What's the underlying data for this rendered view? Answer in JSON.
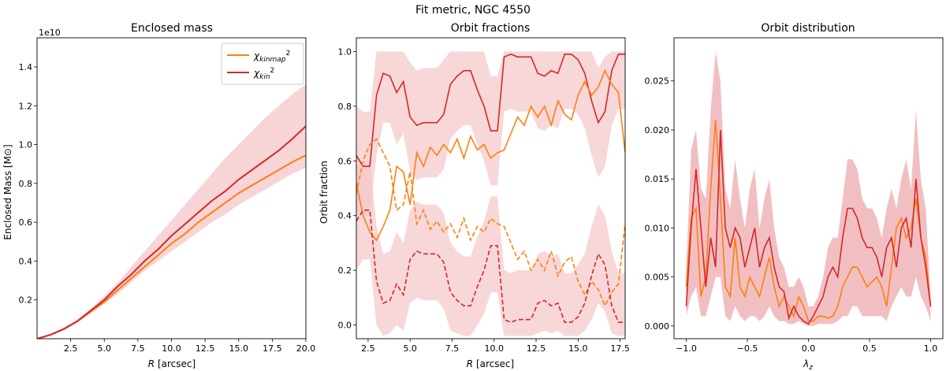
{
  "suptitle": "Fit metric, NGC 4550",
  "colors": {
    "orange": "#ff7f0e",
    "red": "#d62728",
    "band": "#f4c6c8",
    "band_dark": "#e68a8f"
  },
  "chart_data": [
    {
      "id": "mass",
      "type": "line",
      "title": "Enclosed mass",
      "xlabel": "R [arcsec]",
      "ylabel": "Enclosed Mass [M⊙]",
      "offset_label": "1e10",
      "xlim": [
        0,
        20
      ],
      "ylim": [
        0,
        1.55
      ],
      "xticks": [
        2.5,
        5.0,
        7.5,
        10.0,
        12.5,
        15.0,
        17.5,
        20.0
      ],
      "xtick_labels": [
        "2.5",
        "5.0",
        "7.5",
        "10.0",
        "12.5",
        "15.0",
        "17.5",
        "20.0"
      ],
      "yticks": [
        0.2,
        0.4,
        0.6,
        0.8,
        1.0,
        1.2,
        1.4
      ],
      "ytick_labels": [
        "0.2",
        "0.4",
        "0.6",
        "0.8",
        "1.0",
        "1.2",
        "1.4"
      ],
      "legend": [
        {
          "label": "χkinmap²"
        },
        {
          "label": "χkin²"
        }
      ],
      "x": [
        0,
        1,
        2,
        3,
        4,
        5,
        6,
        7,
        8,
        9,
        10,
        11,
        12,
        13,
        14,
        15,
        16,
        17,
        18,
        19,
        20
      ],
      "series": [
        {
          "name": "kinmap",
          "values": [
            0,
            0.02,
            0.05,
            0.09,
            0.14,
            0.19,
            0.25,
            0.31,
            0.37,
            0.43,
            0.49,
            0.54,
            0.6,
            0.65,
            0.7,
            0.75,
            0.79,
            0.83,
            0.87,
            0.91,
            0.945
          ]
        },
        {
          "name": "kin",
          "values": [
            0,
            0.02,
            0.05,
            0.09,
            0.145,
            0.2,
            0.27,
            0.33,
            0.4,
            0.46,
            0.53,
            0.59,
            0.65,
            0.71,
            0.76,
            0.82,
            0.87,
            0.92,
            0.97,
            1.03,
            1.095
          ]
        }
      ],
      "band": {
        "lower": [
          0,
          0.02,
          0.045,
          0.085,
          0.13,
          0.18,
          0.23,
          0.29,
          0.35,
          0.4,
          0.45,
          0.5,
          0.55,
          0.6,
          0.64,
          0.69,
          0.73,
          0.77,
          0.81,
          0.85,
          0.88
        ],
        "upper": [
          0,
          0.02,
          0.06,
          0.1,
          0.155,
          0.22,
          0.29,
          0.37,
          0.45,
          0.53,
          0.61,
          0.69,
          0.77,
          0.85,
          0.93,
          1.0,
          1.07,
          1.14,
          1.2,
          1.26,
          1.31
        ]
      }
    },
    {
      "id": "fractions",
      "type": "line",
      "title": "Orbit fractions",
      "xlabel": "R [arcsec]",
      "ylabel": "Orbit fraction",
      "xlim": [
        1.8,
        17.8
      ],
      "ylim": [
        -0.05,
        1.05
      ],
      "xticks": [
        2.5,
        5.0,
        7.5,
        10.0,
        12.5,
        15.0,
        17.5
      ],
      "xtick_labels": [
        "2.5",
        "5.0",
        "7.5",
        "10.0",
        "12.5",
        "15.0",
        "17.5"
      ],
      "yticks": [
        0.0,
        0.2,
        0.4,
        0.6,
        0.8,
        1.0
      ],
      "ytick_labels": [
        "0.0",
        "0.2",
        "0.4",
        "0.6",
        "0.8",
        "1.0"
      ],
      "x": [
        1.8,
        2.2,
        2.6,
        3.0,
        3.4,
        3.8,
        4.2,
        4.6,
        5.0,
        5.4,
        5.8,
        6.2,
        6.6,
        7.0,
        7.4,
        7.8,
        8.2,
        8.6,
        9.0,
        9.4,
        9.8,
        10.2,
        10.6,
        11.0,
        11.4,
        11.8,
        12.2,
        12.6,
        13.0,
        13.4,
        13.8,
        14.2,
        14.6,
        15.0,
        15.4,
        15.8,
        16.2,
        16.6,
        17.0,
        17.4,
        17.8
      ],
      "series": [
        {
          "name": "red_solid",
          "style": "solid",
          "color": "red",
          "values": [
            0.62,
            0.58,
            0.58,
            0.84,
            0.92,
            0.91,
            0.85,
            0.89,
            0.76,
            0.73,
            0.74,
            0.74,
            0.74,
            0.77,
            0.88,
            0.91,
            0.93,
            0.93,
            0.86,
            0.8,
            0.71,
            0.71,
            0.98,
            0.99,
            0.98,
            0.98,
            0.98,
            0.92,
            0.91,
            0.93,
            0.92,
            0.99,
            0.99,
            0.97,
            0.92,
            0.82,
            0.74,
            0.78,
            0.93,
            0.99,
            0.99
          ]
        },
        {
          "name": "orange_solid",
          "style": "solid",
          "color": "orange",
          "values": [
            0.52,
            0.4,
            0.34,
            0.31,
            0.36,
            0.42,
            0.58,
            0.56,
            0.44,
            0.63,
            0.58,
            0.65,
            0.62,
            0.66,
            0.63,
            0.68,
            0.61,
            0.69,
            0.64,
            0.66,
            0.61,
            0.63,
            0.64,
            0.7,
            0.76,
            0.73,
            0.8,
            0.76,
            0.8,
            0.73,
            0.82,
            0.77,
            0.75,
            0.84,
            0.89,
            0.84,
            0.87,
            0.93,
            0.88,
            0.85,
            0.63
          ]
        },
        {
          "name": "orange_dashed",
          "style": "dashed",
          "color": "orange",
          "values": [
            0.48,
            0.6,
            0.66,
            0.68,
            0.63,
            0.58,
            0.42,
            0.44,
            0.56,
            0.37,
            0.42,
            0.35,
            0.38,
            0.34,
            0.37,
            0.32,
            0.39,
            0.31,
            0.36,
            0.34,
            0.39,
            0.37,
            0.36,
            0.3,
            0.24,
            0.27,
            0.2,
            0.24,
            0.2,
            0.27,
            0.18,
            0.23,
            0.25,
            0.16,
            0.11,
            0.16,
            0.13,
            0.07,
            0.12,
            0.15,
            0.37
          ]
        },
        {
          "name": "red_dashed",
          "style": "dashed",
          "color": "red",
          "values": [
            0.38,
            0.42,
            0.42,
            0.16,
            0.08,
            0.09,
            0.15,
            0.11,
            0.24,
            0.27,
            0.26,
            0.26,
            0.26,
            0.23,
            0.12,
            0.09,
            0.07,
            0.07,
            0.14,
            0.2,
            0.29,
            0.29,
            0.02,
            0.01,
            0.02,
            0.02,
            0.02,
            0.08,
            0.09,
            0.07,
            0.08,
            0.01,
            0.01,
            0.03,
            0.08,
            0.18,
            0.26,
            0.22,
            0.07,
            0.01,
            0.01
          ]
        }
      ],
      "bands": [
        {
          "lower": [
            0.42,
            0.4,
            0.4,
            0.62,
            0.74,
            0.74,
            0.66,
            0.7,
            0.56,
            0.53,
            0.54,
            0.54,
            0.54,
            0.57,
            0.68,
            0.71,
            0.73,
            0.73,
            0.66,
            0.6,
            0.51,
            0.51,
            0.78,
            0.79,
            0.78,
            0.78,
            0.78,
            0.72,
            0.71,
            0.73,
            0.72,
            0.79,
            0.79,
            0.77,
            0.72,
            0.62,
            0.54,
            0.58,
            0.73,
            0.79,
            0.79
          ],
          "upper": [
            0.8,
            0.78,
            0.78,
            1.0,
            1.0,
            1.0,
            1.0,
            1.0,
            0.96,
            0.93,
            0.94,
            0.94,
            0.94,
            0.97,
            1.0,
            1.0,
            1.0,
            1.0,
            1.0,
            1.0,
            0.91,
            0.91,
            1.0,
            1.0,
            1.0,
            1.0,
            1.0,
            1.0,
            1.0,
            1.0,
            1.0,
            1.0,
            1.0,
            1.0,
            1.0,
            1.0,
            0.94,
            0.98,
            1.0,
            1.0,
            1.0
          ]
        },
        {
          "lower": [
            0.2,
            0.24,
            0.24,
            0.0,
            -0.04,
            -0.03,
            0.0,
            -0.02,
            0.08,
            0.1,
            0.09,
            0.09,
            0.09,
            0.06,
            -0.02,
            -0.03,
            -0.04,
            -0.04,
            0.0,
            0.04,
            0.12,
            0.12,
            -0.04,
            -0.04,
            -0.04,
            -0.04,
            -0.04,
            -0.03,
            -0.02,
            -0.03,
            -0.02,
            -0.04,
            -0.04,
            -0.04,
            -0.02,
            0.02,
            0.08,
            0.05,
            -0.03,
            -0.04,
            -0.04
          ],
          "upper": [
            0.58,
            0.6,
            0.6,
            0.36,
            0.26,
            0.27,
            0.34,
            0.3,
            0.42,
            0.45,
            0.44,
            0.44,
            0.44,
            0.41,
            0.3,
            0.27,
            0.25,
            0.25,
            0.32,
            0.38,
            0.47,
            0.47,
            0.2,
            0.19,
            0.2,
            0.2,
            0.2,
            0.26,
            0.27,
            0.25,
            0.26,
            0.19,
            0.19,
            0.22,
            0.26,
            0.36,
            0.44,
            0.4,
            0.27,
            0.19,
            0.19
          ]
        }
      ]
    },
    {
      "id": "distribution",
      "type": "line",
      "title": "Orbit distribution",
      "xlabel": "λz",
      "ylabel": "",
      "xlim": [
        -1.1,
        1.1
      ],
      "ylim": [
        -0.0013,
        0.0294
      ],
      "xticks": [
        -1.0,
        -0.5,
        0.0,
        0.5,
        1.0
      ],
      "xtick_labels": [
        "−1.0",
        "−0.5",
        "0.0",
        "0.5",
        "1.0"
      ],
      "yticks": [
        0.0,
        0.005,
        0.01,
        0.015,
        0.02,
        0.025
      ],
      "ytick_labels": [
        "0.000",
        "0.005",
        "0.010",
        "0.015",
        "0.020",
        "0.025"
      ],
      "x": [
        -1.0,
        -0.96,
        -0.92,
        -0.88,
        -0.84,
        -0.8,
        -0.76,
        -0.72,
        -0.68,
        -0.64,
        -0.6,
        -0.56,
        -0.52,
        -0.48,
        -0.44,
        -0.4,
        -0.36,
        -0.32,
        -0.28,
        -0.24,
        -0.2,
        -0.16,
        -0.12,
        -0.08,
        -0.04,
        0.0,
        0.04,
        0.08,
        0.12,
        0.16,
        0.2,
        0.24,
        0.28,
        0.32,
        0.36,
        0.4,
        0.44,
        0.48,
        0.52,
        0.56,
        0.6,
        0.64,
        0.68,
        0.72,
        0.76,
        0.8,
        0.84,
        0.88,
        0.92,
        0.96,
        1.0
      ],
      "series": [
        {
          "name": "orange",
          "color": "orange",
          "values": [
            0.004,
            0.011,
            0.012,
            0.003,
            0.005,
            0.014,
            0.021,
            0.013,
            0.004,
            0.003,
            0.009,
            0.004,
            0.003,
            0.005,
            0.004,
            0.003,
            0.005,
            0.007,
            0.004,
            0.002,
            0.003,
            0.002,
            0.001,
            0.003,
            0.002,
            0.0005,
            0.0005,
            0.001,
            0.001,
            0.0008,
            0.001,
            0.002,
            0.004,
            0.005,
            0.006,
            0.006,
            0.005,
            0.004,
            0.0045,
            0.005,
            0.004,
            0.002,
            0.006,
            0.01,
            0.011,
            0.009,
            0.01,
            0.013,
            0.009,
            0.007,
            0.002
          ]
        },
        {
          "name": "red",
          "color": "red",
          "values": [
            0.002,
            0.01,
            0.016,
            0.01,
            0.004,
            0.009,
            0.006,
            0.02,
            0.01,
            0.008,
            0.01,
            0.009,
            0.006,
            0.008,
            0.01,
            0.006,
            0.008,
            0.009,
            0.006,
            0.004,
            0.0035,
            0.0008,
            0.002,
            0.001,
            0.0005,
            0.0002,
            0.001,
            0.002,
            0.003,
            0.005,
            0.006,
            0.005,
            0.009,
            0.012,
            0.012,
            0.011,
            0.009,
            0.008,
            0.008,
            0.007,
            0.005,
            0.008,
            0.009,
            0.006,
            0.01,
            0.011,
            0.008,
            0.015,
            0.009,
            0.006,
            0.002
          ]
        }
      ],
      "band": {
        "lower": [
          0.001,
          0.003,
          0.004,
          0.001,
          0.001,
          0.003,
          0.005,
          0.005,
          0.001,
          0.0005,
          0.002,
          0.001,
          0.0005,
          0.001,
          0.001,
          0.0005,
          0.001,
          0.002,
          0.001,
          0.0005,
          0.0005,
          0.0002,
          0.0002,
          0.0005,
          0.0002,
          0.0,
          0.0,
          0.0002,
          0.0002,
          0.0002,
          0.0002,
          0.0005,
          0.001,
          0.001,
          0.002,
          0.002,
          0.001,
          0.001,
          0.001,
          0.001,
          0.001,
          0.0005,
          0.002,
          0.003,
          0.004,
          0.003,
          0.003,
          0.005,
          0.003,
          0.002,
          0.0005
        ],
        "upper": [
          0.006,
          0.018,
          0.02,
          0.014,
          0.013,
          0.022,
          0.028,
          0.025,
          0.014,
          0.012,
          0.017,
          0.013,
          0.01,
          0.014,
          0.016,
          0.01,
          0.013,
          0.015,
          0.01,
          0.007,
          0.006,
          0.004,
          0.004,
          0.005,
          0.004,
          0.002,
          0.002,
          0.003,
          0.005,
          0.008,
          0.009,
          0.009,
          0.013,
          0.017,
          0.017,
          0.016,
          0.013,
          0.012,
          0.012,
          0.011,
          0.009,
          0.012,
          0.014,
          0.012,
          0.015,
          0.017,
          0.014,
          0.022,
          0.015,
          0.012,
          0.003
        ]
      }
    }
  ]
}
